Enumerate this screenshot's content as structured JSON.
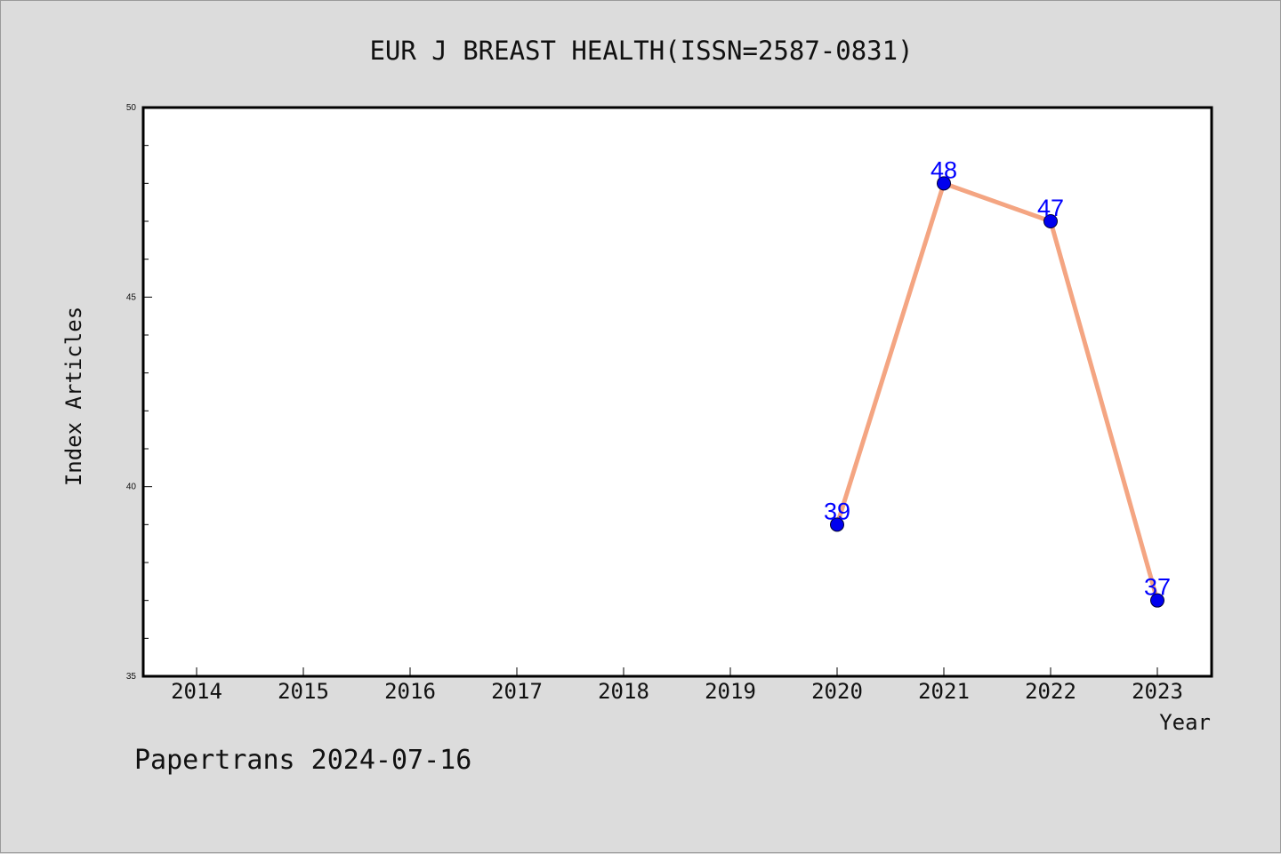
{
  "chart_data": {
    "type": "line",
    "title": "EUR J BREAST HEALTH(ISSN=2587-0831)",
    "xlabel": "Year",
    "ylabel": "Index Articles",
    "categories": [
      "2014",
      "2015",
      "2016",
      "2017",
      "2018",
      "2019",
      "2020",
      "2021",
      "2022",
      "2023"
    ],
    "series": [
      {
        "x": [
          "2020",
          "2021",
          "2022",
          "2023"
        ],
        "values": [
          39,
          48,
          47,
          37
        ],
        "data_labels": [
          "39",
          "48",
          "47",
          "37"
        ]
      }
    ],
    "ylim": [
      35,
      50
    ],
    "y_ticks": [
      "35",
      "40",
      "45",
      "50"
    ],
    "grid": false,
    "colors": {
      "line": "#f4a582",
      "marker": "#0000ee",
      "label": "#0000ff",
      "background": "#dcdcdc",
      "plot": "#ffffff"
    },
    "footer": "Papertrans 2024-07-16"
  }
}
